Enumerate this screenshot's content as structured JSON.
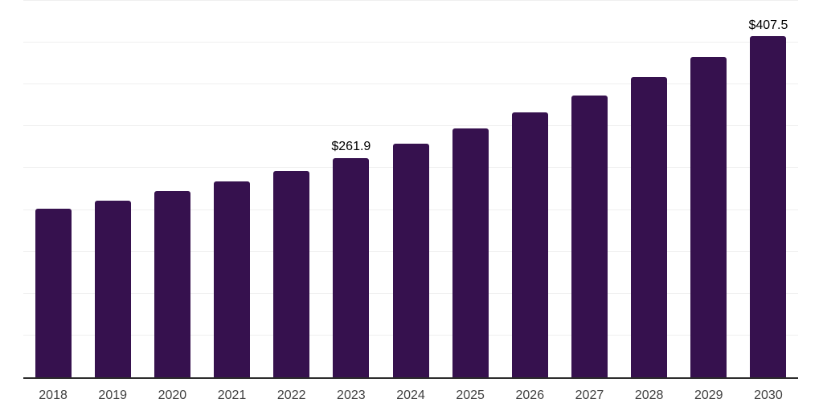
{
  "chart_data": {
    "type": "bar",
    "title": "",
    "xlabel": "",
    "ylabel": "",
    "categories": [
      "2018",
      "2019",
      "2020",
      "2021",
      "2022",
      "2023",
      "2024",
      "2025",
      "2026",
      "2027",
      "2028",
      "2029",
      "2030"
    ],
    "values": [
      202,
      211,
      223,
      234,
      247,
      261.9,
      279,
      297.2,
      316.5,
      337.2,
      359.2,
      382.6,
      407.5
    ],
    "data_labels": {
      "2023": "$261.9",
      "2030": "$407.5"
    },
    "ylim": [
      0,
      451
    ],
    "gridline_step": 50,
    "grid": true,
    "legend": false,
    "y_axis_labels_visible": false
  },
  "colors": {
    "bar": "#36114E",
    "gridline": "#efefef",
    "axis_line": "#2b2b2b",
    "tick_label": "#404040",
    "data_label": "#000000",
    "background": "#ffffff"
  }
}
